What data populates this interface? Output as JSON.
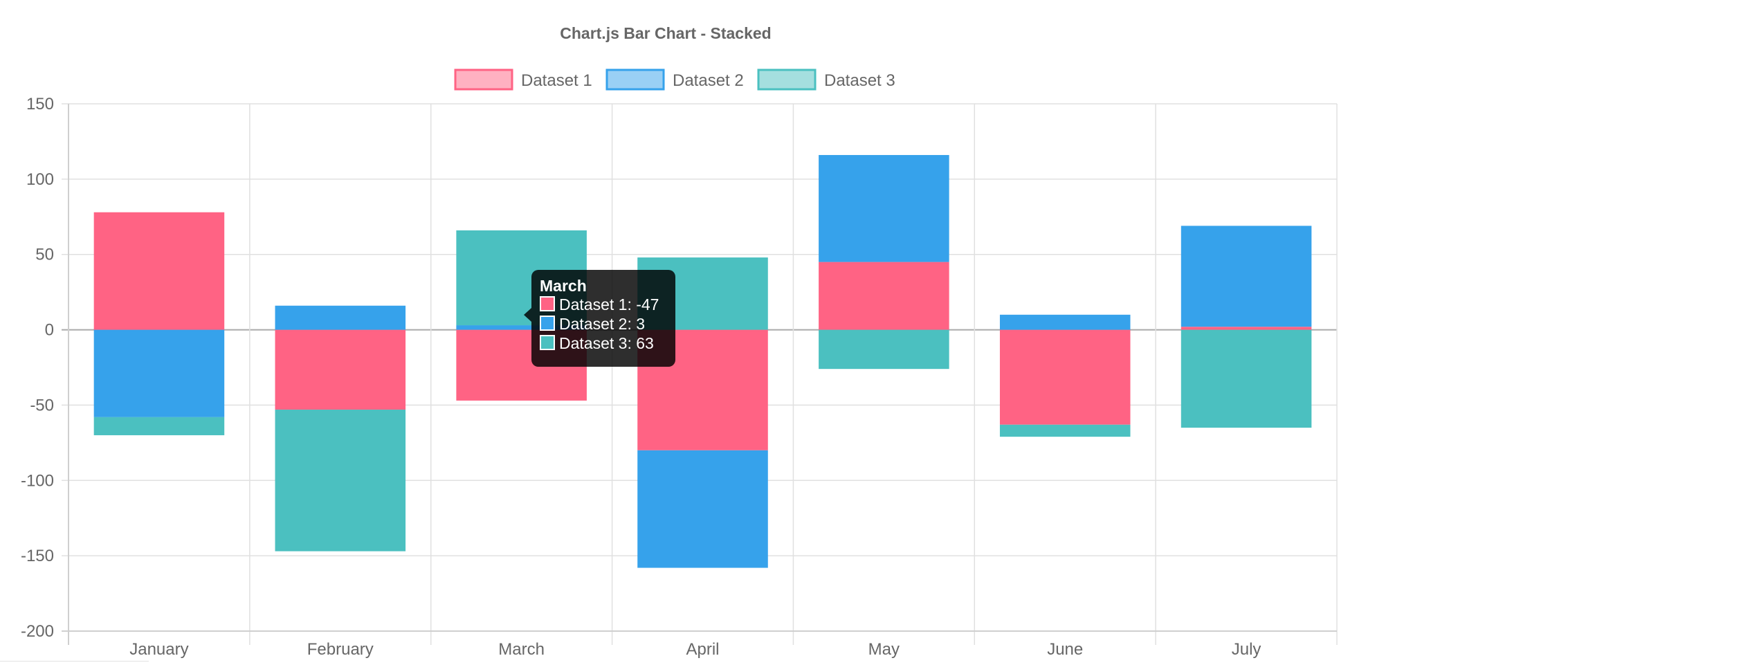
{
  "chart_data": {
    "type": "bar",
    "stacked": true,
    "title": "Chart.js Bar Chart - Stacked",
    "categories": [
      "January",
      "February",
      "March",
      "April",
      "May",
      "June",
      "July"
    ],
    "series": [
      {
        "name": "Dataset 1",
        "color": "#ff6384",
        "values": [
          78,
          -53,
          -47,
          -80,
          45,
          -63,
          2
        ]
      },
      {
        "name": "Dataset 2",
        "color": "#36a2eb",
        "values": [
          -58,
          16,
          3,
          -78,
          71,
          10,
          67
        ]
      },
      {
        "name": "Dataset 3",
        "color": "#4bc0c0",
        "values": [
          -12,
          -94,
          63,
          48,
          -26,
          -8,
          -65
        ]
      }
    ],
    "ylim": [
      -200,
      150
    ],
    "yticks": [
      "150",
      "100",
      "50",
      "0",
      "-50",
      "-100",
      "-150",
      "-200"
    ],
    "grid": true,
    "legend_position": "top",
    "tooltip": {
      "title": "March",
      "lines": [
        "Dataset 1: -47",
        "Dataset 2: 3",
        "Dataset 3: 63"
      ]
    }
  }
}
